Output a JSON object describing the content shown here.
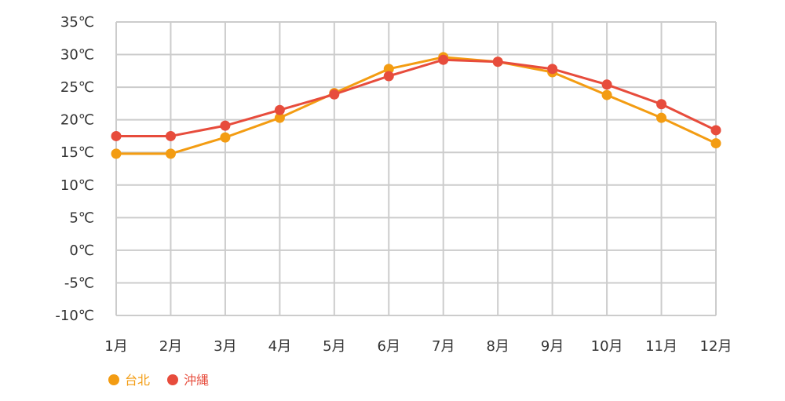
{
  "chart_data": {
    "type": "line",
    "title": "",
    "xlabel": "",
    "ylabel": "",
    "categories": [
      "1月",
      "2月",
      "3月",
      "4月",
      "5月",
      "6月",
      "7月",
      "8月",
      "9月",
      "10月",
      "11月",
      "12月"
    ],
    "y_ticks": [
      "35℃",
      "30℃",
      "25℃",
      "20℃",
      "15℃",
      "10℃",
      "5℃",
      "0℃",
      "-5℃",
      "-10℃"
    ],
    "y_tick_values": [
      35,
      30,
      25,
      20,
      15,
      10,
      5,
      0,
      -5,
      -10
    ],
    "ylim": [
      -10,
      35
    ],
    "grid": true,
    "legend_position": "bottom-left",
    "series": [
      {
        "name": "台北",
        "color": "#f39c12",
        "values": [
          14.8,
          14.8,
          17.3,
          20.3,
          24.1,
          27.8,
          29.6,
          28.9,
          27.3,
          23.8,
          20.3,
          16.4
        ]
      },
      {
        "name": "沖縄",
        "color": "#e74c3c",
        "values": [
          17.5,
          17.5,
          19.1,
          21.5,
          23.9,
          26.7,
          29.2,
          28.9,
          27.8,
          25.4,
          22.4,
          18.4
        ]
      }
    ]
  }
}
